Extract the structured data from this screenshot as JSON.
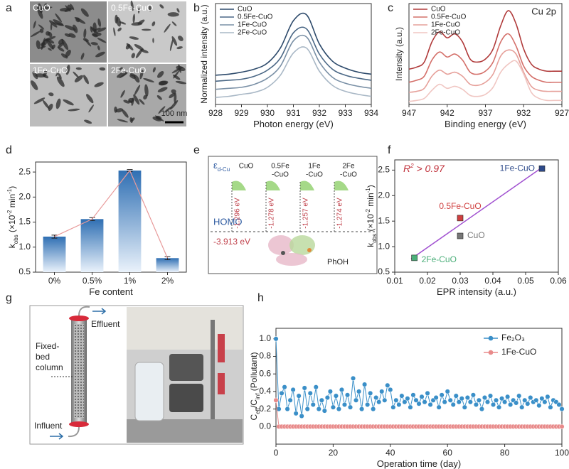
{
  "panel_labels": [
    "a",
    "b",
    "c",
    "d",
    "e",
    "f",
    "g",
    "h"
  ],
  "image_a": {
    "captions": [
      "CuO",
      "0.5Fe-CuO",
      "1Fe-CuO",
      "2Fe-CuO"
    ],
    "scale_bar": "100 nm"
  },
  "diagram_e": {
    "axis_label": [
      {
        "text": "ε"
      },
      {
        "text": "d-Cu",
        "shift": "sub"
      }
    ],
    "states": [
      {
        "label": [
          "CuO"
        ],
        "energy": "-1.296 eV"
      },
      {
        "label": [
          "0.5Fe",
          "-CuO"
        ],
        "energy": "-1.278 eV"
      },
      {
        "label": [
          "1Fe",
          "-CuO"
        ],
        "energy": "-1.257 eV"
      },
      {
        "label": [
          "2Fe",
          "-CuO"
        ],
        "energy": "-1.274 eV"
      }
    ],
    "homo": "HOMO",
    "homo_energy": "-3.913 eV",
    "molecule": "PhOH"
  },
  "image_g": {
    "effluent": "Effluent",
    "column": [
      "Fixed-",
      "bed",
      "column"
    ],
    "influent": "Influent"
  },
  "chart_data": [
    {
      "type": "line",
      "label": "b",
      "smooth": true,
      "legend": "upper left",
      "x_label": [
        {
          "text": "Photon energy (eV)"
        }
      ],
      "y_label": [
        {
          "text": "Normalized intensity (a.u.)"
        }
      ],
      "x": [
        928,
        928.5,
        929,
        929.5,
        930,
        930.5,
        931,
        931.5,
        932,
        932.5,
        933,
        933.5,
        934
      ],
      "xlim": [
        928,
        934
      ],
      "xticks": [
        928,
        929,
        930,
        931,
        932,
        933,
        934
      ],
      "ylim": [
        0,
        1
      ],
      "series": [
        {
          "name": "CuO",
          "color": "#2d4a6b",
          "values": [
            0.29,
            0.3,
            0.32,
            0.35,
            0.41,
            0.56,
            0.83,
            0.89,
            0.6,
            0.43,
            0.36,
            0.32,
            0.3
          ]
        },
        {
          "name": "0.5Fe-CuO",
          "color": "#4a6785",
          "values": [
            0.23,
            0.24,
            0.25,
            0.28,
            0.34,
            0.46,
            0.71,
            0.75,
            0.5,
            0.35,
            0.29,
            0.26,
            0.24
          ]
        },
        {
          "name": "1Fe-CuO",
          "color": "#7a90a6",
          "values": [
            0.15,
            0.16,
            0.17,
            0.2,
            0.26,
            0.38,
            0.63,
            0.67,
            0.42,
            0.27,
            0.21,
            0.18,
            0.16
          ]
        },
        {
          "name": "2Fe-CuO",
          "color": "#a9b8c6",
          "values": [
            0.07,
            0.08,
            0.1,
            0.12,
            0.17,
            0.29,
            0.51,
            0.56,
            0.33,
            0.19,
            0.13,
            0.1,
            0.08
          ]
        }
      ]
    },
    {
      "type": "line",
      "label": "c",
      "smooth": true,
      "legend": "upper left",
      "annotation": "Cu 2p",
      "x_label": [
        {
          "text": "Binding energy (eV)"
        }
      ],
      "y_label": [
        {
          "text": "Intensity (a.u.)"
        }
      ],
      "x": [
        947,
        946,
        945,
        944,
        943,
        942,
        941,
        940,
        939,
        938,
        937,
        936,
        935,
        934,
        933,
        932,
        931,
        930,
        929,
        928,
        927
      ],
      "xlim": [
        947,
        927
      ],
      "xticks": [
        947,
        942,
        937,
        932,
        927
      ],
      "ylim": [
        0,
        1
      ],
      "series": [
        {
          "name": "CuO",
          "color": "#b03a3a",
          "values": [
            0.35,
            0.37,
            0.42,
            0.62,
            0.72,
            0.66,
            0.7,
            0.62,
            0.45,
            0.42,
            0.45,
            0.55,
            0.78,
            0.93,
            0.8,
            0.55,
            0.4,
            0.35,
            0.33,
            0.33,
            0.33
          ]
        },
        {
          "name": "0.5Fe-CuO",
          "color": "#d4706a",
          "values": [
            0.22,
            0.24,
            0.28,
            0.44,
            0.52,
            0.47,
            0.5,
            0.44,
            0.32,
            0.3,
            0.33,
            0.42,
            0.62,
            0.7,
            0.58,
            0.38,
            0.28,
            0.24,
            0.22,
            0.22,
            0.22
          ]
        },
        {
          "name": "1Fe-CuO",
          "color": "#e6a09a",
          "values": [
            0.12,
            0.13,
            0.16,
            0.28,
            0.34,
            0.3,
            0.32,
            0.28,
            0.2,
            0.19,
            0.22,
            0.3,
            0.48,
            0.54,
            0.5,
            0.32,
            0.18,
            0.14,
            0.13,
            0.13,
            0.13
          ]
        },
        {
          "name": "2Fe-CuO",
          "color": "#f0c6c2",
          "values": [
            0.03,
            0.04,
            0.06,
            0.14,
            0.2,
            0.16,
            0.18,
            0.15,
            0.09,
            0.08,
            0.1,
            0.17,
            0.32,
            0.4,
            0.43,
            0.3,
            0.12,
            0.06,
            0.04,
            0.04,
            0.04
          ]
        }
      ]
    },
    {
      "type": "bar",
      "label": "d",
      "color": "#3d7bbf",
      "trend_color": "#e89a9a",
      "x_label": [
        {
          "text": "Fe content"
        }
      ],
      "y_label": [
        {
          "text": "k"
        },
        {
          "text": "obs",
          "shift": "sub"
        },
        {
          "text": " (×10"
        },
        {
          "text": "-2",
          "shift": "super"
        },
        {
          "text": " min"
        },
        {
          "text": "-1",
          "shift": "super"
        },
        {
          "text": ")"
        }
      ],
      "categories": [
        "0%",
        "0.5%",
        "1%",
        "2%"
      ],
      "values": [
        1.21,
        1.56,
        2.53,
        0.78
      ],
      "errors": [
        0.03,
        0.03,
        0.02,
        0.03
      ],
      "ylim": [
        0.5,
        2.7
      ],
      "yticks": [
        0.5,
        {
          "value": 1,
          "label": "1.0"
        },
        1.5,
        {
          "value": 2,
          "label": "2.0"
        },
        2.5
      ]
    },
    {
      "type": "scatter",
      "label": "f",
      "x_label": [
        {
          "text": "EPR intensity (a.u.)"
        }
      ],
      "y_label": [
        {
          "text": "k"
        },
        {
          "text": "obs",
          "shift": "sub"
        },
        {
          "text": " (×10"
        },
        {
          "text": "-2",
          "shift": "super"
        },
        {
          "text": " min"
        },
        {
          "text": "-1",
          "shift": "super"
        },
        {
          "text": ")"
        }
      ],
      "annotation": [
        {
          "text": "R"
        },
        {
          "text": "2",
          "shift": "super"
        },
        {
          "text": " > 0.97"
        }
      ],
      "point_labels": [
        "CuO",
        "0.5Fe-CuO",
        "1Fe-CuO",
        "2Fe-CuO"
      ],
      "colors": [
        "#777777",
        "#d04040",
        "#2d4a8a",
        "#4caf7a"
      ],
      "x": [
        0.03,
        0.03,
        0.055,
        0.016
      ],
      "values": [
        1.21,
        1.56,
        2.53,
        0.78
      ],
      "fit": {
        "color": "#a050d0",
        "x": [
          0.015,
          0.055
        ],
        "y": [
          0.76,
          2.55
        ]
      },
      "xlim": [
        0.01,
        0.06
      ],
      "xticks": [
        0.01,
        0.02,
        0.03,
        0.04,
        0.05,
        0.06
      ],
      "ylim": [
        0.5,
        2.7
      ],
      "yticks": [
        0.5,
        {
          "value": 1,
          "label": "1.0"
        },
        1.5,
        {
          "value": 2,
          "label": "2.0"
        },
        2.5
      ]
    },
    {
      "type": "line",
      "label": "h",
      "markers": true,
      "legend": "upper right",
      "x_label": [
        {
          "text": "Operation time (day)"
        }
      ],
      "y_label": [
        {
          "text": "C"
        },
        {
          "text": "eff",
          "shift": "sub"
        },
        {
          "text": "/C"
        },
        {
          "text": "inf",
          "shift": "sub"
        },
        {
          "text": " (Pollutant)"
        }
      ],
      "x": [
        0,
        1,
        2,
        3,
        4,
        5,
        6,
        7,
        8,
        9,
        10,
        11,
        12,
        13,
        14,
        15,
        16,
        17,
        18,
        19,
        20,
        21,
        22,
        23,
        24,
        25,
        26,
        27,
        28,
        29,
        30,
        31,
        32,
        33,
        34,
        35,
        36,
        37,
        38,
        39,
        40,
        41,
        42,
        43,
        44,
        45,
        46,
        47,
        48,
        49,
        50,
        51,
        52,
        53,
        54,
        55,
        56,
        57,
        58,
        59,
        60,
        61,
        62,
        63,
        64,
        65,
        66,
        67,
        68,
        69,
        70,
        71,
        72,
        73,
        74,
        75,
        76,
        77,
        78,
        79,
        80,
        81,
        82,
        83,
        84,
        85,
        86,
        87,
        88,
        89,
        90,
        91,
        92,
        93,
        94,
        95,
        96,
        97,
        98,
        99,
        100
      ],
      "xlim": [
        0,
        100
      ],
      "xticks": [
        0,
        20,
        40,
        60,
        80,
        100
      ],
      "ylim": [
        -0.2,
        1.12
      ],
      "yticks": [
        {
          "value": 0,
          "label": "0.0"
        },
        0.2,
        0.4,
        0.6,
        0.8,
        {
          "value": 1,
          "label": "1.0"
        }
      ],
      "series": [
        {
          "name": "Fe₂O₃",
          "color": "#3a8fc8",
          "values": [
            1.0,
            0.2,
            0.38,
            0.45,
            0.2,
            0.3,
            0.42,
            0.15,
            0.35,
            0.12,
            0.44,
            0.2,
            0.38,
            0.25,
            0.45,
            0.2,
            0.3,
            0.18,
            0.33,
            0.4,
            0.22,
            0.35,
            0.2,
            0.42,
            0.25,
            0.36,
            0.22,
            0.55,
            0.3,
            0.4,
            0.2,
            0.48,
            0.25,
            0.38,
            0.2,
            0.33,
            0.28,
            0.4,
            0.3,
            0.47,
            0.42,
            0.22,
            0.3,
            0.25,
            0.35,
            0.28,
            0.32,
            0.22,
            0.36,
            0.3,
            0.26,
            0.34,
            0.28,
            0.38,
            0.25,
            0.3,
            0.33,
            0.22,
            0.36,
            0.28,
            0.4,
            0.3,
            0.25,
            0.35,
            0.28,
            0.32,
            0.22,
            0.33,
            0.28,
            0.36,
            0.25,
            0.3,
            0.2,
            0.33,
            0.28,
            0.35,
            0.25,
            0.3,
            0.22,
            0.32,
            0.28,
            0.34,
            0.25,
            0.3,
            0.27,
            0.35,
            0.22,
            0.3,
            0.26,
            0.33,
            0.28,
            0.3,
            0.24,
            0.32,
            0.28,
            0.34,
            0.22,
            0.3,
            0.28,
            0.25,
            0.2
          ]
        },
        {
          "name": "1Fe-CuO",
          "color": "#e88a8a",
          "values": [
            0.3,
            0,
            0,
            0,
            0,
            0,
            0,
            0,
            0,
            0,
            0,
            0,
            0,
            0,
            0,
            0,
            0,
            0,
            0,
            0,
            0,
            0,
            0,
            0,
            0,
            0,
            0,
            0,
            0,
            0,
            0,
            0,
            0,
            0,
            0,
            0,
            0,
            0,
            0,
            0,
            0,
            0,
            0,
            0,
            0,
            0,
            0,
            0,
            0,
            0,
            0,
            0,
            0,
            0,
            0,
            0,
            0,
            0,
            0,
            0,
            0,
            0,
            0,
            0,
            0,
            0,
            0,
            0,
            0,
            0,
            0,
            0,
            0,
            0,
            0,
            0,
            0,
            0,
            0,
            0,
            0,
            0,
            0,
            0,
            0,
            0,
            0,
            0,
            0,
            0,
            0,
            0,
            0,
            0,
            0,
            0,
            0,
            0,
            0,
            0,
            0
          ]
        }
      ]
    }
  ]
}
